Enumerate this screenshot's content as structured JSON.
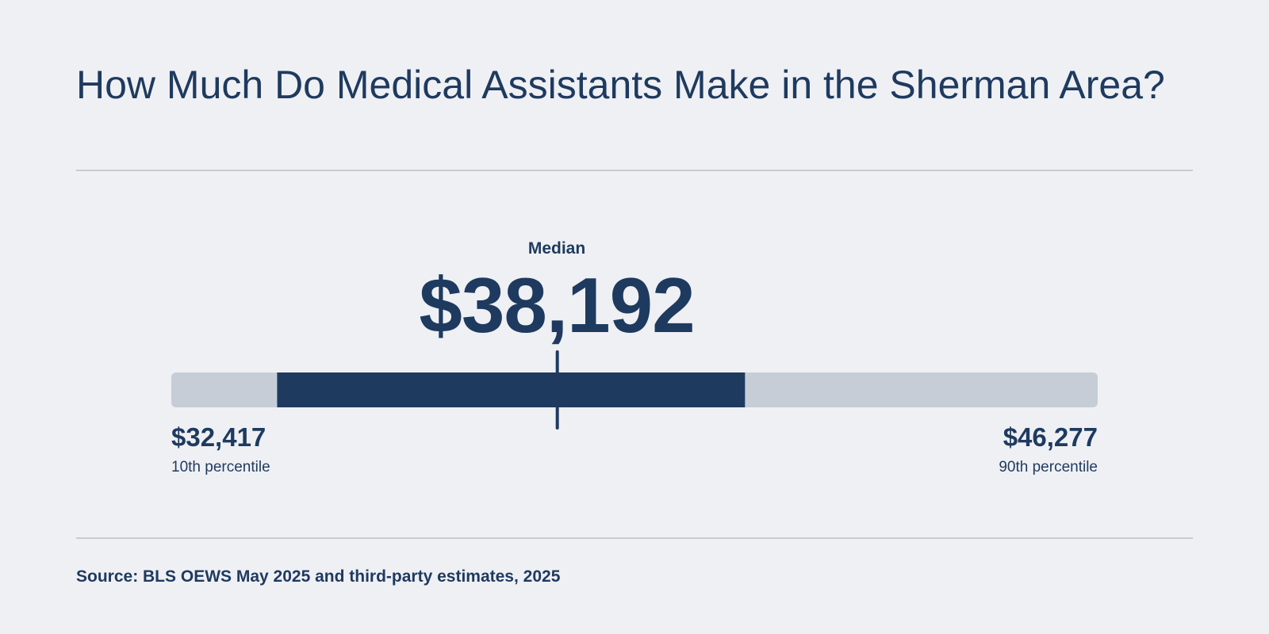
{
  "header": {
    "title": "How Much Do Medical Assistants Make in the Sherman Area?"
  },
  "chart_data": {
    "type": "range-bar",
    "title": "How Much Do Medical Assistants Make in the Sherman Area?",
    "median": {
      "label": "Median",
      "value": 38192,
      "display": "$38,192"
    },
    "p10": {
      "label": "10th percentile",
      "value": 32417,
      "display": "$32,417"
    },
    "p90": {
      "label": "90th percentile",
      "value": 46277,
      "display": "$46,277"
    },
    "highlight_range": [
      34000,
      41000
    ],
    "colors": {
      "track": "#c7cdd7",
      "highlight": "#1e3a5f",
      "marker": "#1e3a5f",
      "text": "#1e3a5f",
      "background": "#eff0f4"
    }
  },
  "footer": {
    "source": "Source: BLS OEWS May 2025 and third-party estimates, 2025"
  }
}
